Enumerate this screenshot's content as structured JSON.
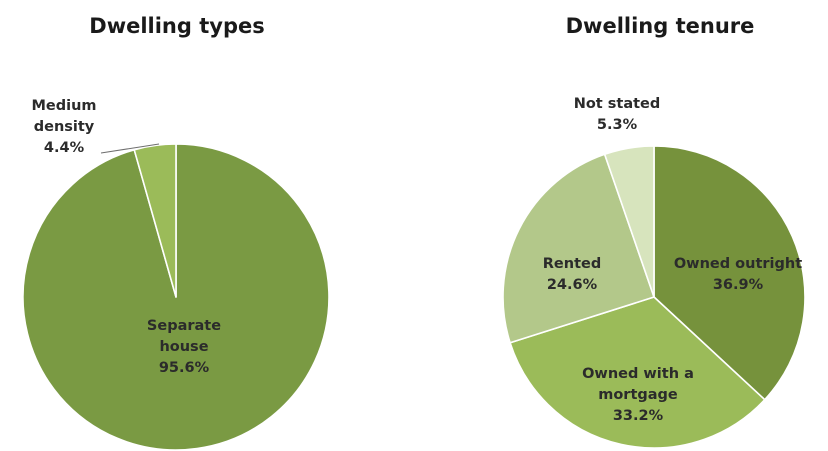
{
  "chart_data": [
    {
      "type": "pie",
      "title": "Dwelling types",
      "slices": [
        {
          "label_lines": [
            "Separate",
            "house"
          ],
          "value_label": "95.6%",
          "value": 95.6,
          "color": "#7a9a43"
        },
        {
          "label_lines": [
            "Medium",
            "density"
          ],
          "value_label": "4.4%",
          "value": 4.4,
          "color": "#9bbb59"
        }
      ]
    },
    {
      "type": "pie",
      "title": "Dwelling tenure",
      "slices": [
        {
          "label_lines": [
            "Owned outright"
          ],
          "value_label": "36.9%",
          "value": 36.9,
          "color": "#76923c"
        },
        {
          "label_lines": [
            "Owned with a",
            "mortgage"
          ],
          "value_label": "33.2%",
          "value": 33.2,
          "color": "#9bbb59"
        },
        {
          "label_lines": [
            "Rented"
          ],
          "value_label": "24.6%",
          "value": 24.6,
          "color": "#b3c88a"
        },
        {
          "label_lines": [
            "Not stated"
          ],
          "value_label": "5.3%",
          "value": 5.3,
          "color": "#d7e4bd"
        }
      ]
    }
  ]
}
